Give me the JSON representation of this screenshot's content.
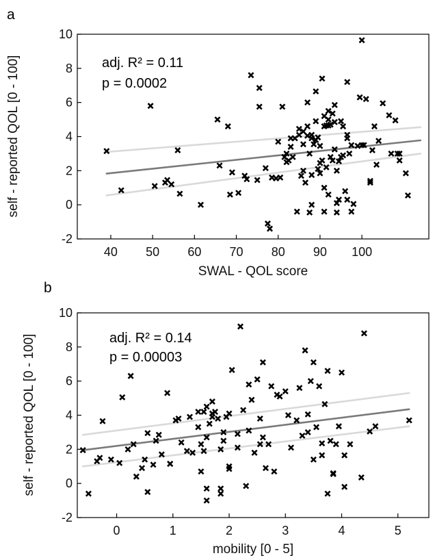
{
  "chart_data": [
    {
      "panel": "a",
      "type": "scatter",
      "xlabel": "SWAL - QOL score",
      "ylabel": "self - reported QOL [0 - 100]",
      "xlim": [
        32,
        116
      ],
      "ylim": [
        -2,
        10
      ],
      "xticks": [
        "40",
        "50",
        "60",
        "70",
        "80",
        "90",
        "100"
      ],
      "yticks": [
        "-2",
        "0",
        "2",
        "4",
        "6",
        "8",
        "10"
      ],
      "grid": false,
      "annotations": [
        "adj. R² = 0.11",
        "p = 0.0002"
      ],
      "regression": {
        "x": [
          39,
          114
        ],
        "fit": [
          1.83,
          3.78
        ],
        "ci_lower": [
          0.55,
          3.0
        ],
        "ci_upper": [
          3.1,
          4.55
        ]
      },
      "points": [
        [
          39,
          3.15
        ],
        [
          42.5,
          0.85
        ],
        [
          49.5,
          5.8
        ],
        [
          50.5,
          1.1
        ],
        [
          53,
          1.3
        ],
        [
          53.5,
          1.45
        ],
        [
          54.5,
          1.2
        ],
        [
          56,
          3.2
        ],
        [
          56.5,
          0.65
        ],
        [
          61.5,
          0
        ],
        [
          65.5,
          5.0
        ],
        [
          66,
          2.3
        ],
        [
          68,
          4.6
        ],
        [
          68.5,
          0.6
        ],
        [
          69,
          1.9
        ],
        [
          70.5,
          0.7
        ],
        [
          72,
          1.7
        ],
        [
          72.5,
          1.5
        ],
        [
          73.5,
          7.6
        ],
        [
          75,
          1.45
        ],
        [
          75.5,
          6.85
        ],
        [
          75.5,
          5.75
        ],
        [
          77,
          2.15
        ],
        [
          77.5,
          -1.1
        ],
        [
          78,
          -1.4
        ],
        [
          78.5,
          1.6
        ],
        [
          79.5,
          1.55
        ],
        [
          80,
          3.7
        ],
        [
          80.5,
          1.6
        ],
        [
          81,
          5.75
        ],
        [
          81.5,
          2.8
        ],
        [
          82,
          2.5
        ],
        [
          82,
          3.0
        ],
        [
          82.5,
          2.6
        ],
        [
          83,
          3.4
        ],
        [
          83,
          3.9
        ],
        [
          83.5,
          2.8
        ],
        [
          84,
          3.9
        ],
        [
          84.5,
          -0.4
        ],
        [
          85,
          4.1
        ],
        [
          85,
          4.45
        ],
        [
          85.5,
          1.7
        ],
        [
          86,
          2.0
        ],
        [
          86,
          3.55
        ],
        [
          86,
          4.3
        ],
        [
          86.5,
          1.3
        ],
        [
          87,
          4.05
        ],
        [
          87,
          4.6
        ],
        [
          87,
          6.0
        ],
        [
          87.5,
          -0.45
        ],
        [
          87.5,
          3.0
        ],
        [
          88,
          1.75
        ],
        [
          88,
          3.9
        ],
        [
          88,
          4.1
        ],
        [
          88,
          0
        ],
        [
          88.5,
          3.55
        ],
        [
          89,
          4.9
        ],
        [
          89,
          3.8
        ],
        [
          89,
          6.65
        ],
        [
          89.5,
          2.1
        ],
        [
          89.5,
          3.95
        ],
        [
          90,
          1.85
        ],
        [
          90,
          2.45
        ],
        [
          90,
          3.45
        ],
        [
          90.5,
          2.6
        ],
        [
          90.5,
          7.4
        ],
        [
          91,
          4.6
        ],
        [
          91,
          5.2
        ],
        [
          91,
          1.0
        ],
        [
          91,
          -0.4
        ],
        [
          91.5,
          4.65
        ],
        [
          91.5,
          2.2
        ],
        [
          92,
          4.65
        ],
        [
          92,
          5.5
        ],
        [
          92,
          5.0
        ],
        [
          92,
          0.6
        ],
        [
          92.5,
          2.8
        ],
        [
          92.5,
          4.7
        ],
        [
          93,
          5.35
        ],
        [
          93,
          2.6
        ],
        [
          93.5,
          5.85
        ],
        [
          93.5,
          3.25
        ],
        [
          93.5,
          4.85
        ],
        [
          94,
          0.1
        ],
        [
          94,
          -0.45
        ],
        [
          94,
          2.0
        ],
        [
          94.5,
          0.3
        ],
        [
          94.5,
          2.55
        ],
        [
          95,
          2.8
        ],
        [
          95,
          4.9
        ],
        [
          95.5,
          4.6
        ],
        [
          95.5,
          2.9
        ],
        [
          96,
          0.8
        ],
        [
          96.5,
          3.9
        ],
        [
          96.5,
          4.1
        ],
        [
          96.5,
          7.2
        ],
        [
          96.5,
          0.3
        ],
        [
          97,
          3.0
        ],
        [
          97.5,
          3.5
        ],
        [
          97.5,
          -0.4
        ],
        [
          98,
          0.05
        ],
        [
          99,
          3.45
        ],
        [
          99.5,
          6.3
        ],
        [
          100,
          9.65
        ],
        [
          100,
          3.5
        ],
        [
          100.5,
          3.5
        ],
        [
          101,
          6.2
        ],
        [
          102,
          1.4
        ],
        [
          102,
          1.3
        ],
        [
          102.5,
          3.2
        ],
        [
          103,
          4.6
        ],
        [
          103.5,
          2.35
        ],
        [
          104,
          3.75
        ],
        [
          105,
          5.95
        ],
        [
          106.5,
          5.25
        ],
        [
          107,
          3.0
        ],
        [
          108,
          4.95
        ],
        [
          108.5,
          3.0
        ],
        [
          109,
          2.6
        ],
        [
          109,
          3.0
        ],
        [
          110.5,
          1.85
        ],
        [
          111,
          0.55
        ]
      ]
    },
    {
      "panel": "b",
      "type": "scatter",
      "xlabel": "mobility [0 - 5]",
      "ylabel": "self - reported QOL [0 - 100]",
      "xlim": [
        -0.7,
        5.55
      ],
      "ylim": [
        -2,
        10
      ],
      "xticks": [
        "0",
        "1",
        "2",
        "3",
        "4",
        "5"
      ],
      "yticks": [
        "-2",
        "0",
        "2",
        "4",
        "6",
        "8",
        "10"
      ],
      "grid": false,
      "annotations": [
        "adj. R² = 0.14",
        "p = 0.00003"
      ],
      "regression": {
        "x": [
          -0.6,
          5.2
        ],
        "fit": [
          1.95,
          4.35
        ],
        "ci_lower": [
          1.0,
          3.35
        ],
        "ci_upper": [
          2.85,
          5.3
        ]
      },
      "points": [
        [
          -0.6,
          1.95
        ],
        [
          -0.5,
          -0.6
        ],
        [
          -0.35,
          1.3
        ],
        [
          -0.3,
          1.5
        ],
        [
          -0.25,
          3.65
        ],
        [
          -0.1,
          1.4
        ],
        [
          0.05,
          1.2
        ],
        [
          0.1,
          5.05
        ],
        [
          0.2,
          2.0
        ],
        [
          0.25,
          6.3
        ],
        [
          0.3,
          2.3
        ],
        [
          0.35,
          0.4
        ],
        [
          0.45,
          0.9
        ],
        [
          0.5,
          1.4
        ],
        [
          0.55,
          2.95
        ],
        [
          0.55,
          -0.5
        ],
        [
          0.65,
          1.1
        ],
        [
          0.7,
          2.5
        ],
        [
          0.75,
          2.85
        ],
        [
          0.8,
          1.7
        ],
        [
          0.9,
          5.3
        ],
        [
          0.95,
          1.15
        ],
        [
          0.95,
          1.15
        ],
        [
          1.05,
          3.7
        ],
        [
          1.1,
          3.8
        ],
        [
          1.15,
          2.4
        ],
        [
          1.25,
          1.9
        ],
        [
          1.3,
          3.9
        ],
        [
          1.35,
          1.8
        ],
        [
          1.45,
          3.3
        ],
        [
          1.45,
          4.2
        ],
        [
          1.5,
          2.3
        ],
        [
          1.5,
          0.7
        ],
        [
          1.55,
          4.2
        ],
        [
          1.55,
          1.9
        ],
        [
          1.6,
          -0.3
        ],
        [
          1.6,
          -1.0
        ],
        [
          1.6,
          2.7
        ],
        [
          1.6,
          4.5
        ],
        [
          1.65,
          3.5
        ],
        [
          1.7,
          4.8
        ],
        [
          1.7,
          4.1
        ],
        [
          1.7,
          3.9
        ],
        [
          1.75,
          4.2
        ],
        [
          1.8,
          3.8
        ],
        [
          1.85,
          -0.3
        ],
        [
          1.85,
          -0.6
        ],
        [
          1.85,
          2.0
        ],
        [
          1.9,
          3.0
        ],
        [
          1.9,
          2.5
        ],
        [
          1.95,
          3.9
        ],
        [
          2.0,
          1.0
        ],
        [
          2.0,
          0.85
        ],
        [
          2.0,
          4.1
        ],
        [
          2.05,
          6.65
        ],
        [
          2.15,
          2.9
        ],
        [
          2.15,
          2.1
        ],
        [
          2.2,
          9.2
        ],
        [
          2.25,
          4.3
        ],
        [
          2.3,
          -0.15
        ],
        [
          2.35,
          5.8
        ],
        [
          2.35,
          3.1
        ],
        [
          2.4,
          4.9
        ],
        [
          2.45,
          1.8
        ],
        [
          2.5,
          6.1
        ],
        [
          2.55,
          3.8
        ],
        [
          2.55,
          2.3
        ],
        [
          2.6,
          7.1
        ],
        [
          2.6,
          2.7
        ],
        [
          2.65,
          0.9
        ],
        [
          2.7,
          2.3
        ],
        [
          2.75,
          5.7
        ],
        [
          2.8,
          0.7
        ],
        [
          2.85,
          5.2
        ],
        [
          2.9,
          5.1
        ],
        [
          3.0,
          5.4
        ],
        [
          3.05,
          4.0
        ],
        [
          3.1,
          2.1
        ],
        [
          3.2,
          3.7
        ],
        [
          3.25,
          5.6
        ],
        [
          3.3,
          2.8
        ],
        [
          3.35,
          7.8
        ],
        [
          3.4,
          4.05
        ],
        [
          3.4,
          3.0
        ],
        [
          3.45,
          6.0
        ],
        [
          3.5,
          7.1
        ],
        [
          3.5,
          1.4
        ],
        [
          3.55,
          3.3
        ],
        [
          3.6,
          5.7
        ],
        [
          3.65,
          1.65
        ],
        [
          3.65,
          2.35
        ],
        [
          3.7,
          4.65
        ],
        [
          3.75,
          6.6
        ],
        [
          3.75,
          -0.6
        ],
        [
          3.8,
          2.5
        ],
        [
          3.85,
          0.6
        ],
        [
          3.85,
          0.55
        ],
        [
          3.9,
          2.3
        ],
        [
          3.95,
          3.35
        ],
        [
          4.0,
          6.5
        ],
        [
          4.05,
          1.65
        ],
        [
          4.05,
          -0.2
        ],
        [
          4.15,
          2.3
        ],
        [
          4.35,
          0.35
        ],
        [
          4.4,
          8.8
        ],
        [
          4.5,
          3.05
        ],
        [
          4.6,
          3.35
        ],
        [
          5.2,
          3.7
        ]
      ]
    }
  ]
}
